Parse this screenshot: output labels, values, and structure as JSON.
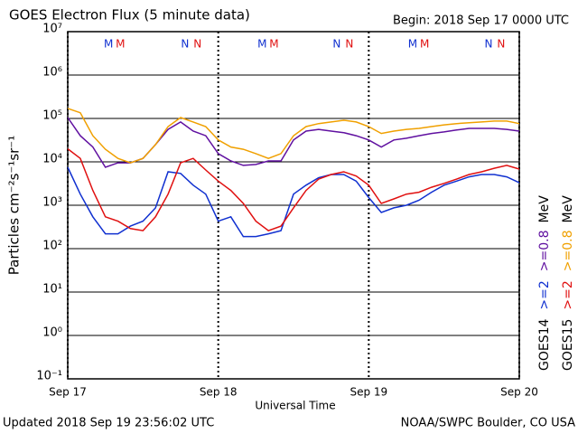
{
  "chart_data": {
    "type": "line",
    "title": "GOES Electron Flux (5 minute data)",
    "subtitle": "Begin: 2018 Sep 17 0000 UTC",
    "y_label": "Particles cm⁻²s⁻¹sr⁻¹",
    "x_label": "Universal Time",
    "footer_left": "Updated 2018 Sep 19 23:56:02 UTC",
    "footer_right": "NOAA/SWPC Boulder, CO USA",
    "log_y": true,
    "grid": true,
    "reference_line": 1000,
    "satellites": [
      "GOES14",
      "GOES15"
    ],
    "unit": "MeV",
    "x": [
      0,
      2,
      4,
      6,
      8,
      10,
      12,
      14,
      16,
      18,
      20,
      22,
      24,
      26,
      28,
      30,
      32,
      34,
      36,
      38,
      40,
      42,
      44,
      46,
      48,
      50,
      52,
      54,
      56,
      58,
      60,
      62,
      64,
      66,
      68,
      70,
      72
    ],
    "xlim": [
      0,
      72
    ],
    "xticks": [
      {
        "value": 0,
        "label": "Sep 17"
      },
      {
        "value": 24,
        "label": "Sep 18"
      },
      {
        "value": 48,
        "label": "Sep 19"
      },
      {
        "value": 72,
        "label": "Sep 20"
      }
    ],
    "ylim": [
      0.1,
      10000000
    ],
    "yticks": [
      {
        "value": 10000000,
        "label": "10⁷"
      },
      {
        "value": 1000000,
        "label": "10⁶"
      },
      {
        "value": 100000,
        "label": "10⁵"
      },
      {
        "value": 10000,
        "label": "10⁴"
      },
      {
        "value": 1000,
        "label": "10³"
      },
      {
        "value": 100,
        "label": "10²"
      },
      {
        "value": 10,
        "label": "10¹"
      },
      {
        "value": 1,
        "label": "10⁰"
      },
      {
        "value": 0.1,
        "label": "10⁻¹"
      }
    ],
    "series": [
      {
        "name": ">=2",
        "color": "#1030d0",
        "values": [
          7500,
          1800,
          540,
          220,
          220,
          330,
          430,
          870,
          5900,
          5400,
          2900,
          1800,
          430,
          540,
          190,
          190,
          220,
          260,
          1800,
          2900,
          4300,
          5100,
          5100,
          3600,
          1500,
          680,
          870,
          1000,
          1300,
          2000,
          2900,
          3600,
          4500,
          5100,
          5100,
          4500,
          3300
        ]
      },
      {
        "name": ">=0.8",
        "color": "#6010a0",
        "values": [
          105000,
          40000,
          22000,
          7500,
          9500,
          9500,
          12000,
          25000,
          56000,
          83000,
          51000,
          40000,
          15500,
          10500,
          8300,
          8700,
          10500,
          10500,
          32000,
          51000,
          56000,
          51000,
          47000,
          40000,
          32000,
          22000,
          32000,
          35000,
          40000,
          45000,
          49000,
          54000,
          59000,
          59000,
          59000,
          56000,
          51000
        ]
      },
      {
        "name": ">=2",
        "color": "#e01010",
        "values": [
          20000,
          12000,
          2200,
          540,
          430,
          290,
          260,
          540,
          1800,
          9500,
          12000,
          6500,
          3600,
          2200,
          1100,
          430,
          260,
          330,
          870,
          2200,
          4000,
          5100,
          5900,
          4700,
          2900,
          1100,
          1400,
          1800,
          2000,
          2600,
          3200,
          4000,
          5100,
          5900,
          7100,
          8300,
          6800
        ]
      },
      {
        "name": ">=0.8",
        "color": "#f0a000",
        "values": [
          170000,
          135000,
          40000,
          19500,
          12000,
          9500,
          12000,
          25000,
          65000,
          105000,
          83000,
          65000,
          32000,
          22000,
          19500,
          15500,
          12000,
          15500,
          40000,
          65000,
          76000,
          83000,
          91000,
          83000,
          65000,
          45000,
          51000,
          56000,
          59000,
          65000,
          71000,
          76000,
          80000,
          83000,
          87000,
          87000,
          76000
        ]
      }
    ],
    "annotations": [
      {
        "text": "M",
        "x": 6.5,
        "color": "#1030d0"
      },
      {
        "text": "M",
        "x": 8.4,
        "color": "#e01010"
      },
      {
        "text": "N",
        "x": 18.7,
        "color": "#1030d0"
      },
      {
        "text": "N",
        "x": 20.7,
        "color": "#e01010"
      },
      {
        "text": "M",
        "x": 31,
        "color": "#1030d0"
      },
      {
        "text": "M",
        "x": 32.9,
        "color": "#e01010"
      },
      {
        "text": "N",
        "x": 42.9,
        "color": "#1030d0"
      },
      {
        "text": "N",
        "x": 44.9,
        "color": "#e01010"
      },
      {
        "text": "M",
        "x": 55,
        "color": "#1030d0"
      },
      {
        "text": "M",
        "x": 56.9,
        "color": "#e01010"
      },
      {
        "text": "N",
        "x": 67.1,
        "color": "#1030d0"
      },
      {
        "text": "N",
        "x": 69.1,
        "color": "#e01010"
      }
    ]
  }
}
